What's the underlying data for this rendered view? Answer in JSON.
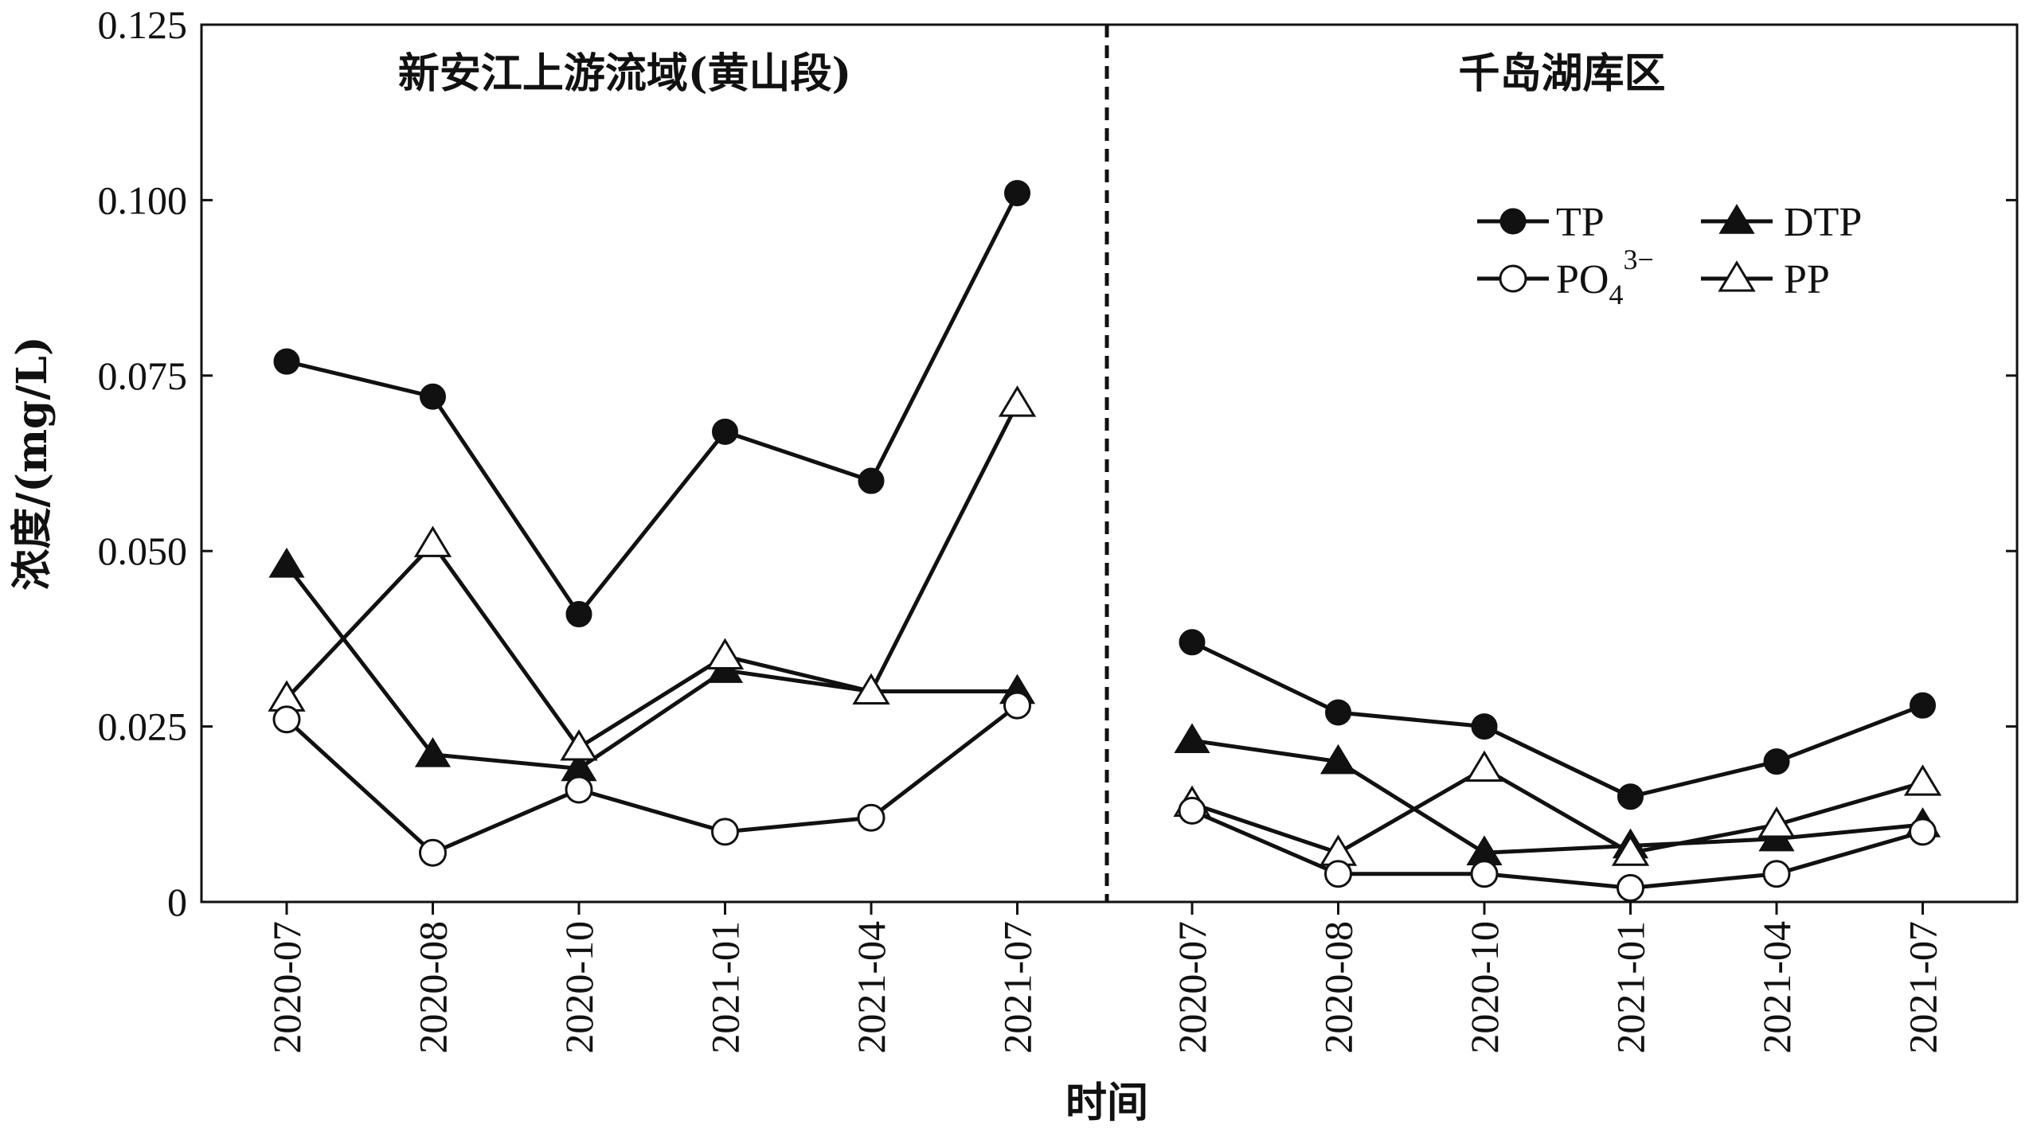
{
  "chart_data": {
    "type": "line",
    "ylabel": "浓度/(mg/L)",
    "xlabel": "时间",
    "ylim": [
      0,
      0.125
    ],
    "yticks": [
      "0",
      "0.025",
      "0.050",
      "0.075",
      "0.100",
      "0.125"
    ],
    "ytick_values": [
      0,
      0.025,
      0.05,
      0.075,
      0.1,
      0.125
    ],
    "grid": false,
    "legend_position": "top-right",
    "colors": {
      "line": "#111111",
      "fill_open": "#ffffff"
    },
    "panels": [
      {
        "title": "新安江上游流域(黄山段)",
        "categories": [
          "2020-07",
          "2020-08",
          "2020-10",
          "2021-01",
          "2021-04",
          "2021-07"
        ],
        "series": [
          {
            "name": "TP",
            "marker": "circle-filled",
            "values": [
              0.077,
              0.072,
              0.041,
              0.067,
              0.06,
              0.101
            ]
          },
          {
            "name": "DTP",
            "marker": "triangle-filled",
            "values": [
              0.048,
              0.021,
              0.019,
              0.033,
              0.03,
              0.03
            ]
          },
          {
            "name": "PO4 3−",
            "marker": "circle-open",
            "values": [
              0.026,
              0.007,
              0.016,
              0.01,
              0.012,
              0.028
            ]
          },
          {
            "name": "PP",
            "marker": "triangle-open",
            "values": [
              0.029,
              0.051,
              0.022,
              0.035,
              0.03,
              0.071
            ]
          }
        ]
      },
      {
        "title": "千岛湖库区",
        "categories": [
          "2020-07",
          "2020-08",
          "2020-10",
          "2021-01",
          "2021-04",
          "2021-07"
        ],
        "series": [
          {
            "name": "TP",
            "marker": "circle-filled",
            "values": [
              0.037,
              0.027,
              0.025,
              0.015,
              0.02,
              0.028
            ]
          },
          {
            "name": "DTP",
            "marker": "triangle-filled",
            "values": [
              0.023,
              0.02,
              0.007,
              0.008,
              0.009,
              0.011
            ]
          },
          {
            "name": "PO4 3−",
            "marker": "circle-open",
            "values": [
              0.013,
              0.004,
              0.004,
              0.002,
              0.004,
              0.01
            ]
          },
          {
            "name": "PP",
            "marker": "triangle-open",
            "values": [
              0.014,
              0.007,
              0.019,
              0.007,
              0.011,
              0.017
            ]
          }
        ]
      }
    ],
    "legend": [
      {
        "name": "TP",
        "marker": "circle-filled"
      },
      {
        "name": "DTP",
        "marker": "triangle-filled"
      },
      {
        "name": "PO",
        "sub": "4",
        "sup": "3−",
        "marker": "circle-open"
      },
      {
        "name": "PP",
        "marker": "triangle-open"
      }
    ]
  }
}
